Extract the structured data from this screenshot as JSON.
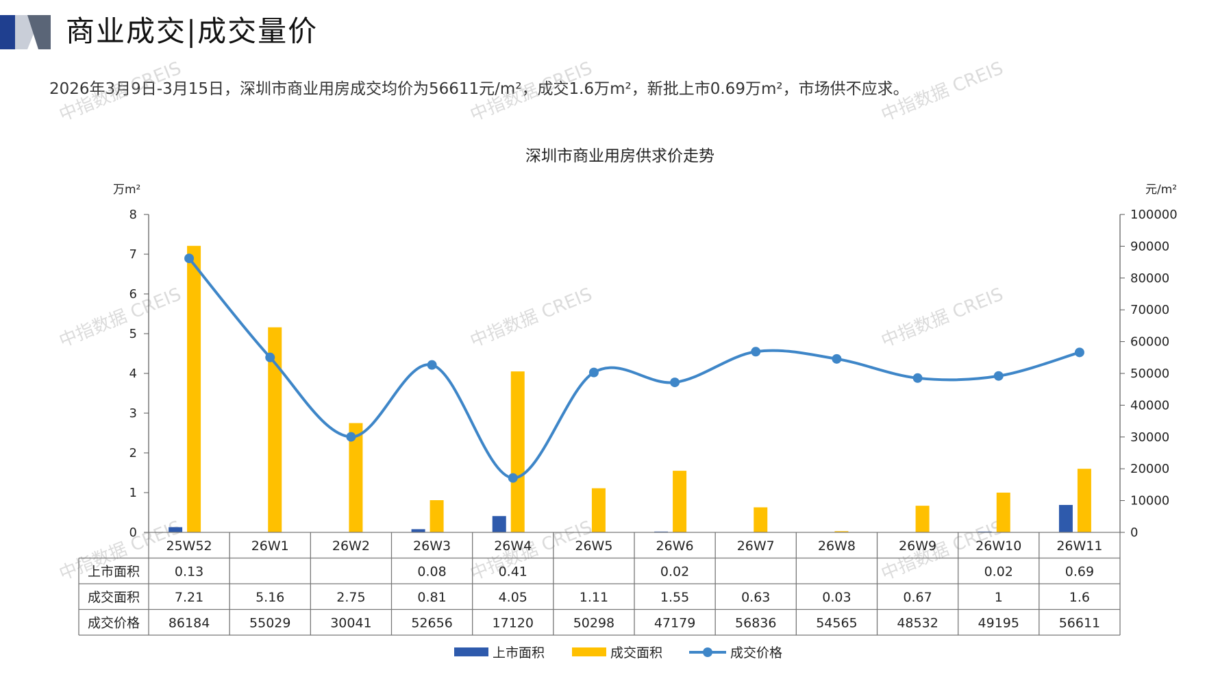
{
  "header": {
    "title": "商业成交|成交量价",
    "summary": "2026年3月9日-3月15日，深圳市商业用房成交均价为56611元/m²，成交1.6万m²，新批上市0.69万m²，市场供不应求。"
  },
  "watermark": {
    "text": "中指数据 CREIS"
  },
  "colors": {
    "supply": "#2E5AAC",
    "deal_area": "#FFC000",
    "price": "#3E86C8",
    "brand_dark": "#1F3F8F",
    "brand_gray": "#9AA3B5"
  },
  "chart_data": {
    "type": "bar",
    "title": "深圳市商业用房供求价走势",
    "y_left_unit": "万m²",
    "y_right_unit": "元/m²",
    "y_left_range": [
      0,
      8
    ],
    "y_left_ticks": [
      "0",
      "1",
      "2",
      "3",
      "4",
      "5",
      "6",
      "7",
      "8"
    ],
    "y_right_range": [
      0,
      100000
    ],
    "y_right_ticks": [
      "0",
      "10000",
      "20000",
      "30000",
      "40000",
      "50000",
      "60000",
      "70000",
      "80000",
      "90000",
      "100000"
    ],
    "categories": [
      "25W52",
      "26W1",
      "26W2",
      "26W3",
      "26W4",
      "26W5",
      "26W6",
      "26W7",
      "26W8",
      "26W9",
      "26W10",
      "26W11"
    ],
    "series": [
      {
        "name": "上市面积",
        "type": "bar",
        "axis": "left",
        "values": [
          0.13,
          null,
          null,
          0.08,
          0.41,
          null,
          0.02,
          null,
          null,
          null,
          0.02,
          0.69
        ]
      },
      {
        "name": "成交面积",
        "type": "bar",
        "axis": "left",
        "values": [
          7.21,
          5.16,
          2.75,
          0.81,
          4.05,
          1.11,
          1.55,
          0.63,
          0.03,
          0.67,
          1,
          1.6
        ]
      },
      {
        "name": "成交价格",
        "type": "line",
        "axis": "right",
        "values": [
          86184,
          55029,
          30041,
          52656,
          17120,
          50298,
          47179,
          56836,
          54565,
          48532,
          49195,
          56611
        ]
      }
    ],
    "table": {
      "rows": [
        {
          "label": "上市面积",
          "cells": [
            "0.13",
            "",
            "",
            "0.08",
            "0.41",
            "",
            "0.02",
            "",
            "",
            "",
            "0.02",
            "0.69"
          ]
        },
        {
          "label": "成交面积",
          "cells": [
            "7.21",
            "5.16",
            "2.75",
            "0.81",
            "4.05",
            "1.11",
            "1.55",
            "0.63",
            "0.03",
            "0.67",
            "1",
            "1.6"
          ]
        },
        {
          "label": "成交价格",
          "cells": [
            "86184",
            "55029",
            "30041",
            "52656",
            "17120",
            "50298",
            "47179",
            "56836",
            "54565",
            "48532",
            "49195",
            "56611"
          ]
        }
      ]
    },
    "legend": {
      "placement": "bottom",
      "items": [
        "上市面积",
        "成交面积",
        "成交价格"
      ]
    },
    "grid": false
  }
}
